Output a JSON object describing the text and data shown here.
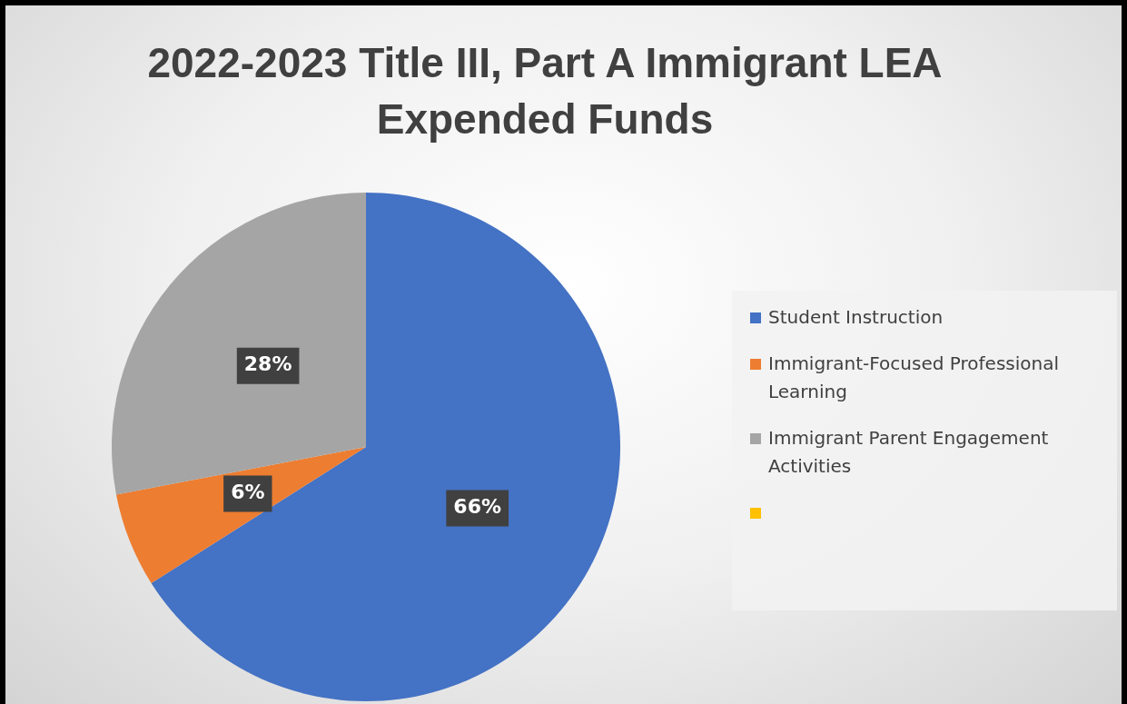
{
  "chart_data": {
    "type": "pie",
    "title": "2022-2023 Title III, Part A Immigrant LEA Expended Funds",
    "categories": [
      "Student Instruction",
      "Immigrant-Focused Professional Learning",
      "Immigrant Parent Engagement Activities",
      null
    ],
    "values": [
      66,
      6,
      28,
      0
    ],
    "colors": [
      "#4472c4",
      "#ed7d31",
      "#a5a5a5",
      "#ffc000"
    ],
    "value_labels": [
      "66%",
      "6%",
      "28%",
      null
    ],
    "legend": "right"
  }
}
